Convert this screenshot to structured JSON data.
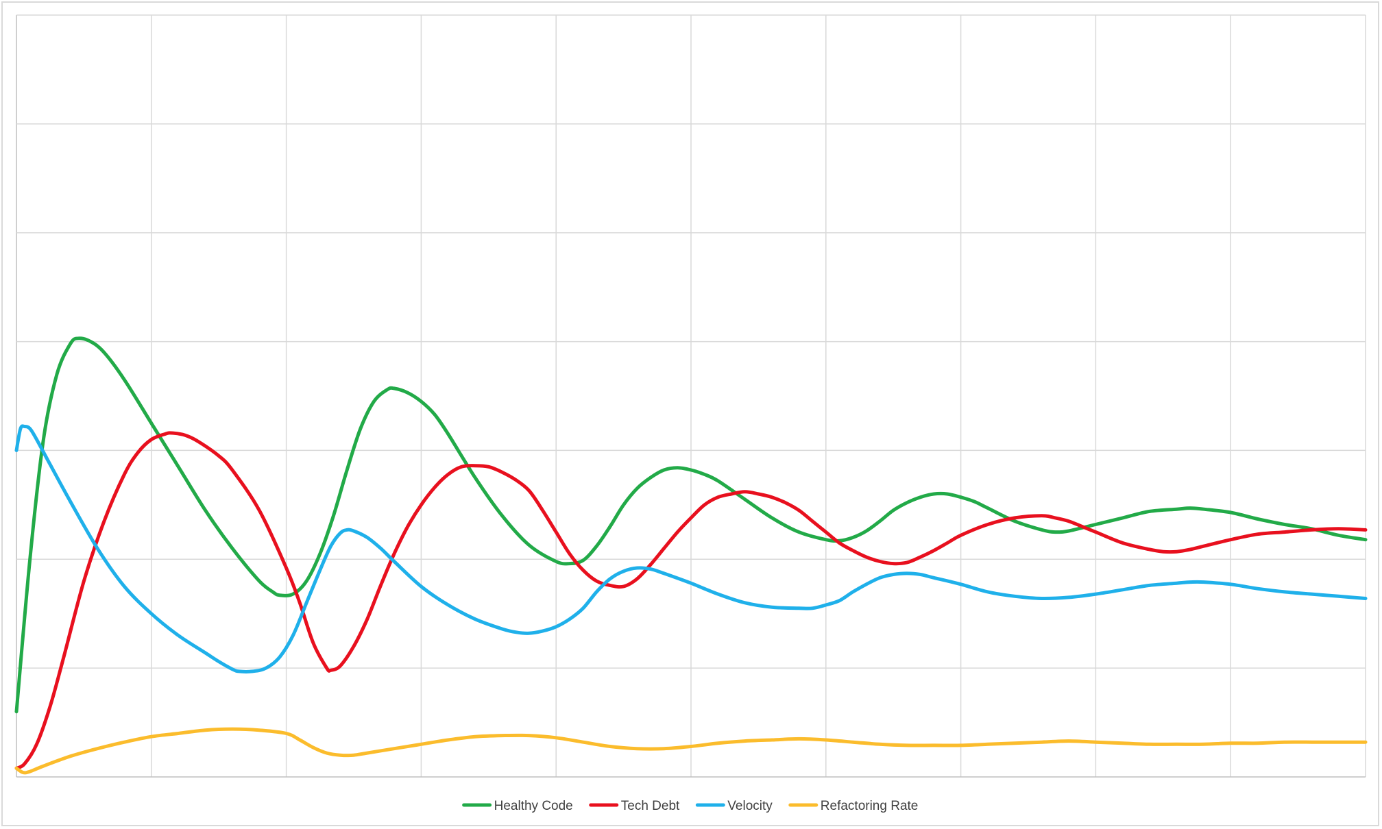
{
  "chart_data": {
    "type": "line",
    "grid": true,
    "legend_position": "bottom",
    "xlim": [
      0,
      100
    ],
    "ylim": [
      0,
      7
    ],
    "x_gridlines": [
      0,
      10,
      20,
      30,
      40,
      50,
      60,
      70,
      80,
      90,
      100
    ],
    "y_gridlines": [
      0,
      1,
      2,
      3,
      4,
      5,
      6,
      7
    ],
    "series": [
      {
        "name": "Healthy Code",
        "color": "#22aa48",
        "points": [
          [
            0,
            0.6
          ],
          [
            1,
            2.0
          ],
          [
            2,
            3.1
          ],
          [
            3,
            3.7
          ],
          [
            4,
            3.98
          ],
          [
            4.6,
            4.03
          ],
          [
            5.5,
            4.0
          ],
          [
            6.5,
            3.9
          ],
          [
            8,
            3.65
          ],
          [
            10,
            3.25
          ],
          [
            12,
            2.85
          ],
          [
            14,
            2.45
          ],
          [
            16,
            2.1
          ],
          [
            18,
            1.8
          ],
          [
            19,
            1.7
          ],
          [
            19.5,
            1.67
          ],
          [
            20.5,
            1.68
          ],
          [
            21.5,
            1.8
          ],
          [
            22.5,
            2.05
          ],
          [
            23.5,
            2.4
          ],
          [
            24.5,
            2.82
          ],
          [
            25.5,
            3.2
          ],
          [
            26.5,
            3.45
          ],
          [
            27.5,
            3.56
          ],
          [
            28,
            3.57
          ],
          [
            29,
            3.53
          ],
          [
            30,
            3.45
          ],
          [
            31,
            3.33
          ],
          [
            32,
            3.15
          ],
          [
            34,
            2.75
          ],
          [
            36,
            2.4
          ],
          [
            38,
            2.13
          ],
          [
            40,
            1.98
          ],
          [
            41,
            1.96
          ],
          [
            42,
            1.99
          ],
          [
            43,
            2.12
          ],
          [
            44,
            2.3
          ],
          [
            45,
            2.5
          ],
          [
            46,
            2.65
          ],
          [
            47,
            2.75
          ],
          [
            48,
            2.82
          ],
          [
            49,
            2.84
          ],
          [
            50,
            2.82
          ],
          [
            51,
            2.78
          ],
          [
            52,
            2.72
          ],
          [
            54,
            2.55
          ],
          [
            56,
            2.38
          ],
          [
            58,
            2.25
          ],
          [
            60,
            2.18
          ],
          [
            61,
            2.17
          ],
          [
            62,
            2.2
          ],
          [
            63,
            2.26
          ],
          [
            64,
            2.35
          ],
          [
            65,
            2.45
          ],
          [
            66,
            2.52
          ],
          [
            67,
            2.57
          ],
          [
            68,
            2.6
          ],
          [
            69,
            2.6
          ],
          [
            70,
            2.57
          ],
          [
            71,
            2.53
          ],
          [
            72,
            2.47
          ],
          [
            74,
            2.35
          ],
          [
            76,
            2.27
          ],
          [
            77,
            2.25
          ],
          [
            78,
            2.26
          ],
          [
            80,
            2.32
          ],
          [
            82,
            2.38
          ],
          [
            84,
            2.44
          ],
          [
            86,
            2.46
          ],
          [
            87,
            2.47
          ],
          [
            88,
            2.46
          ],
          [
            90,
            2.43
          ],
          [
            92,
            2.37
          ],
          [
            94,
            2.32
          ],
          [
            96,
            2.28
          ],
          [
            98,
            2.22
          ],
          [
            100,
            2.18
          ]
        ]
      },
      {
        "name": "Tech Debt",
        "color": "#e8101e",
        "points": [
          [
            0,
            0.08
          ],
          [
            0.6,
            0.12
          ],
          [
            1.5,
            0.3
          ],
          [
            2.5,
            0.65
          ],
          [
            3.5,
            1.1
          ],
          [
            5,
            1.8
          ],
          [
            6.5,
            2.35
          ],
          [
            8,
            2.78
          ],
          [
            9,
            2.98
          ],
          [
            10,
            3.1
          ],
          [
            11,
            3.15
          ],
          [
            11.5,
            3.16
          ],
          [
            12.5,
            3.14
          ],
          [
            13.5,
            3.08
          ],
          [
            15,
            2.95
          ],
          [
            16,
            2.82
          ],
          [
            18,
            2.45
          ],
          [
            20,
            1.92
          ],
          [
            21,
            1.6
          ],
          [
            22,
            1.23
          ],
          [
            23,
            1.0
          ],
          [
            23.3,
            0.98
          ],
          [
            24,
            1.02
          ],
          [
            25,
            1.2
          ],
          [
            26,
            1.45
          ],
          [
            27,
            1.76
          ],
          [
            28,
            2.05
          ],
          [
            29,
            2.3
          ],
          [
            30,
            2.5
          ],
          [
            31,
            2.66
          ],
          [
            32,
            2.78
          ],
          [
            33,
            2.85
          ],
          [
            34,
            2.86
          ],
          [
            35,
            2.85
          ],
          [
            36,
            2.8
          ],
          [
            37,
            2.73
          ],
          [
            38,
            2.63
          ],
          [
            39,
            2.45
          ],
          [
            40,
            2.25
          ],
          [
            41,
            2.05
          ],
          [
            42,
            1.9
          ],
          [
            43,
            1.8
          ],
          [
            44,
            1.76
          ],
          [
            45,
            1.75
          ],
          [
            46,
            1.82
          ],
          [
            47,
            1.95
          ],
          [
            48,
            2.1
          ],
          [
            49,
            2.25
          ],
          [
            50,
            2.38
          ],
          [
            51,
            2.5
          ],
          [
            52,
            2.57
          ],
          [
            53,
            2.6
          ],
          [
            54,
            2.62
          ],
          [
            55,
            2.6
          ],
          [
            56,
            2.57
          ],
          [
            57,
            2.52
          ],
          [
            58,
            2.45
          ],
          [
            59,
            2.35
          ],
          [
            60,
            2.25
          ],
          [
            61,
            2.15
          ],
          [
            62,
            2.08
          ],
          [
            63,
            2.02
          ],
          [
            64,
            1.98
          ],
          [
            65,
            1.96
          ],
          [
            66,
            1.97
          ],
          [
            67,
            2.02
          ],
          [
            68,
            2.08
          ],
          [
            69,
            2.15
          ],
          [
            70,
            2.22
          ],
          [
            72,
            2.32
          ],
          [
            74,
            2.38
          ],
          [
            76,
            2.4
          ],
          [
            77,
            2.38
          ],
          [
            78,
            2.35
          ],
          [
            79,
            2.3
          ],
          [
            80,
            2.25
          ],
          [
            82,
            2.15
          ],
          [
            84,
            2.09
          ],
          [
            85,
            2.07
          ],
          [
            86,
            2.07
          ],
          [
            87,
            2.09
          ],
          [
            88,
            2.12
          ],
          [
            90,
            2.18
          ],
          [
            92,
            2.23
          ],
          [
            94,
            2.25
          ],
          [
            96,
            2.27
          ],
          [
            98,
            2.28
          ],
          [
            100,
            2.27
          ]
        ]
      },
      {
        "name": "Velocity",
        "color": "#1fb0ea",
        "points": [
          [
            0,
            3.0
          ],
          [
            0.3,
            3.2
          ],
          [
            0.6,
            3.22
          ],
          [
            1,
            3.2
          ],
          [
            1.5,
            3.1
          ],
          [
            2.5,
            2.87
          ],
          [
            4,
            2.53
          ],
          [
            6,
            2.1
          ],
          [
            8,
            1.75
          ],
          [
            10,
            1.5
          ],
          [
            12,
            1.3
          ],
          [
            14,
            1.14
          ],
          [
            15,
            1.06
          ],
          [
            16,
            0.99
          ],
          [
            16.5,
            0.97
          ],
          [
            17.5,
            0.97
          ],
          [
            18.5,
            1.0
          ],
          [
            19.5,
            1.1
          ],
          [
            20.5,
            1.3
          ],
          [
            21.5,
            1.6
          ],
          [
            22.5,
            1.9
          ],
          [
            23.3,
            2.12
          ],
          [
            24,
            2.24
          ],
          [
            24.5,
            2.27
          ],
          [
            25,
            2.26
          ],
          [
            26,
            2.2
          ],
          [
            27,
            2.1
          ],
          [
            28,
            1.98
          ],
          [
            30,
            1.75
          ],
          [
            32,
            1.58
          ],
          [
            34,
            1.45
          ],
          [
            36,
            1.36
          ],
          [
            37,
            1.33
          ],
          [
            38,
            1.32
          ],
          [
            39,
            1.34
          ],
          [
            40,
            1.38
          ],
          [
            41,
            1.45
          ],
          [
            42,
            1.55
          ],
          [
            43,
            1.7
          ],
          [
            44,
            1.82
          ],
          [
            45,
            1.89
          ],
          [
            46,
            1.92
          ],
          [
            47,
            1.91
          ],
          [
            48,
            1.87
          ],
          [
            50,
            1.78
          ],
          [
            52,
            1.68
          ],
          [
            54,
            1.6
          ],
          [
            56,
            1.56
          ],
          [
            58,
            1.55
          ],
          [
            59,
            1.55
          ],
          [
            60,
            1.58
          ],
          [
            61,
            1.62
          ],
          [
            62,
            1.7
          ],
          [
            63,
            1.77
          ],
          [
            64,
            1.83
          ],
          [
            65,
            1.86
          ],
          [
            66,
            1.87
          ],
          [
            67,
            1.86
          ],
          [
            68,
            1.83
          ],
          [
            70,
            1.77
          ],
          [
            72,
            1.7
          ],
          [
            74,
            1.66
          ],
          [
            76,
            1.64
          ],
          [
            78,
            1.65
          ],
          [
            80,
            1.68
          ],
          [
            82,
            1.72
          ],
          [
            84,
            1.76
          ],
          [
            86,
            1.78
          ],
          [
            87,
            1.79
          ],
          [
            88,
            1.79
          ],
          [
            90,
            1.77
          ],
          [
            92,
            1.73
          ],
          [
            94,
            1.7
          ],
          [
            96,
            1.68
          ],
          [
            98,
            1.66
          ],
          [
            100,
            1.64
          ]
        ]
      },
      {
        "name": "Refactoring Rate",
        "color": "#fbbc2c",
        "points": [
          [
            0,
            0.08
          ],
          [
            0.5,
            0.04
          ],
          [
            1,
            0.05
          ],
          [
            2,
            0.1
          ],
          [
            4,
            0.19
          ],
          [
            6,
            0.26
          ],
          [
            8,
            0.32
          ],
          [
            10,
            0.37
          ],
          [
            12,
            0.4
          ],
          [
            14,
            0.43
          ],
          [
            16,
            0.44
          ],
          [
            18,
            0.43
          ],
          [
            20,
            0.4
          ],
          [
            21,
            0.34
          ],
          [
            22,
            0.27
          ],
          [
            23,
            0.22
          ],
          [
            24,
            0.2
          ],
          [
            25,
            0.2
          ],
          [
            26,
            0.22
          ],
          [
            28,
            0.26
          ],
          [
            30,
            0.3
          ],
          [
            32,
            0.34
          ],
          [
            34,
            0.37
          ],
          [
            36,
            0.38
          ],
          [
            38,
            0.38
          ],
          [
            40,
            0.36
          ],
          [
            42,
            0.32
          ],
          [
            44,
            0.28
          ],
          [
            46,
            0.26
          ],
          [
            48,
            0.26
          ],
          [
            50,
            0.28
          ],
          [
            52,
            0.31
          ],
          [
            54,
            0.33
          ],
          [
            56,
            0.34
          ],
          [
            58,
            0.35
          ],
          [
            60,
            0.34
          ],
          [
            62,
            0.32
          ],
          [
            64,
            0.3
          ],
          [
            66,
            0.29
          ],
          [
            68,
            0.29
          ],
          [
            70,
            0.29
          ],
          [
            72,
            0.3
          ],
          [
            74,
            0.31
          ],
          [
            76,
            0.32
          ],
          [
            78,
            0.33
          ],
          [
            80,
            0.32
          ],
          [
            82,
            0.31
          ],
          [
            84,
            0.3
          ],
          [
            86,
            0.3
          ],
          [
            88,
            0.3
          ],
          [
            90,
            0.31
          ],
          [
            92,
            0.31
          ],
          [
            94,
            0.32
          ],
          [
            96,
            0.32
          ],
          [
            98,
            0.32
          ],
          [
            100,
            0.32
          ]
        ]
      }
    ]
  }
}
